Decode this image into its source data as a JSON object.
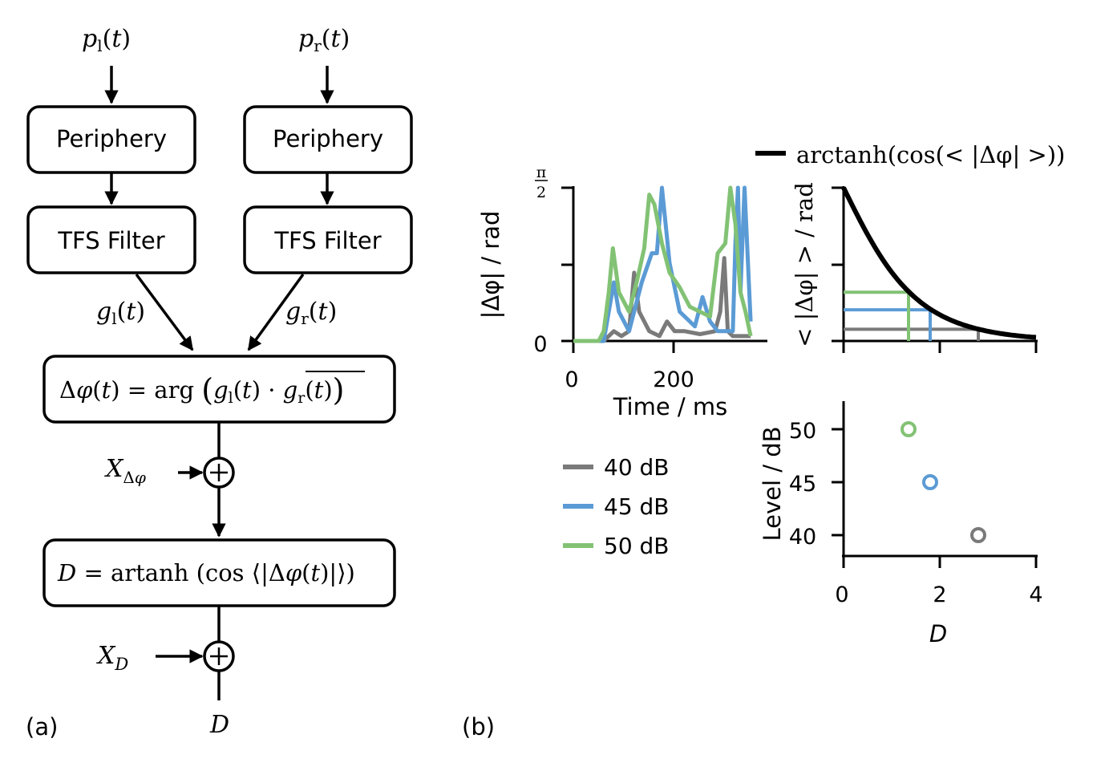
{
  "panel_a": {
    "label": "(a)",
    "input_left": "p_l(t)",
    "input_right": "p_r(t)",
    "periphery_left": "Periphery",
    "periphery_right": "Periphery",
    "tfs_left": "TFS Filter",
    "tfs_right": "TFS Filter",
    "g_left": "g_l(t)",
    "g_right": "g_r(t)",
    "phase_box": "Δφ(t) = arg ( g_l(t) · conj(g_r(t)) )",
    "noise_phase": "X_Δφ",
    "d_box": "D = artanh (cos ⟨|Δφ(t)|⟩)",
    "noise_d": "X_D",
    "output": "D"
  },
  "panel_b": {
    "label": "(b)",
    "legend_curve": "arctanh(cos(< |Δφ| >))",
    "legend": [
      {
        "label": "40 dB",
        "color": "#7a7a7a"
      },
      {
        "label": "45 dB",
        "color": "#5b9bd5"
      },
      {
        "label": "50 dB",
        "color": "#82c274"
      }
    ]
  },
  "chart_data": [
    {
      "type": "line",
      "title": "",
      "xlabel": "Time / ms",
      "ylabel": "|Δφ| / rad",
      "xlim": [
        0,
        380
      ],
      "ylim": [
        0,
        1.5708
      ],
      "xticks": [
        "0",
        "200"
      ],
      "yticks": [
        "0",
        "π/2"
      ],
      "series": [
        {
          "name": "40 dB",
          "color": "#7a7a7a",
          "x": [
            0,
            60,
            80,
            95,
            110,
            120,
            130,
            150,
            170,
            185,
            200,
            220,
            250,
            280,
            290,
            298,
            305,
            315,
            330,
            350
          ],
          "y": [
            0,
            0,
            0.1,
            0.05,
            0.1,
            0.7,
            0.3,
            0.1,
            0.05,
            0.2,
            0.1,
            0.1,
            0.07,
            0.1,
            0.3,
            0.85,
            0.1,
            0.05,
            0.05,
            0.05
          ]
        },
        {
          "name": "45 dB",
          "color": "#5b9bd5",
          "x": [
            0,
            60,
            70,
            80,
            90,
            110,
            135,
            155,
            165,
            175,
            190,
            210,
            240,
            255,
            270,
            285,
            300,
            315,
            320,
            325,
            330,
            338,
            350
          ],
          "y": [
            0,
            0,
            0.3,
            0.6,
            0.3,
            0.1,
            0.6,
            0.9,
            0.9,
            1.5708,
            0.8,
            0.3,
            0.15,
            0.45,
            0.2,
            0.1,
            0.1,
            0.1,
            1.0,
            1.5708,
            0.5,
            1.5708,
            0.2
          ]
        },
        {
          "name": "50 dB",
          "color": "#82c274",
          "x": [
            0,
            50,
            60,
            70,
            78,
            90,
            110,
            125,
            140,
            150,
            160,
            175,
            190,
            210,
            230,
            250,
            270,
            285,
            300,
            310,
            320,
            330,
            340,
            350
          ],
          "y": [
            0,
            0,
            0.1,
            0.5,
            0.95,
            0.5,
            0.3,
            0.6,
            0.95,
            1.5,
            1.4,
            1.0,
            0.7,
            0.55,
            0.35,
            0.3,
            0.25,
            0.9,
            1.0,
            1.5708,
            1.2,
            0.5,
            0.3,
            0.05
          ]
        }
      ]
    },
    {
      "type": "line",
      "title": "",
      "xlabel": "",
      "ylabel": "< |Δφ| > / rad",
      "xlim": [
        0,
        4
      ],
      "ylim": [
        0,
        1.5708
      ],
      "series": [
        {
          "name": "arctanh(cos(< |Δφ| >))",
          "color": "#000000",
          "function": "<|Δφ|> = arccos(tanh(D))"
        }
      ],
      "markers": [
        {
          "name": "40 dB",
          "D": 2.8,
          "phase": 0.12,
          "color": "#7a7a7a"
        },
        {
          "name": "45 dB",
          "D": 1.8,
          "phase": 0.32,
          "color": "#5b9bd5"
        },
        {
          "name": "50 dB",
          "D": 1.35,
          "phase": 0.5,
          "color": "#82c274"
        }
      ]
    },
    {
      "type": "scatter",
      "title": "",
      "xlabel": "D",
      "ylabel": "Level / dB",
      "xlim": [
        0,
        4
      ],
      "ylim": [
        38,
        52
      ],
      "xticks": [
        "0",
        "2",
        "4"
      ],
      "yticks": [
        "40",
        "45",
        "50"
      ],
      "points": [
        {
          "x": 2.8,
          "y": 40,
          "color": "#7a7a7a"
        },
        {
          "x": 1.8,
          "y": 45,
          "color": "#5b9bd5"
        },
        {
          "x": 1.35,
          "y": 50,
          "color": "#82c274"
        }
      ]
    }
  ]
}
